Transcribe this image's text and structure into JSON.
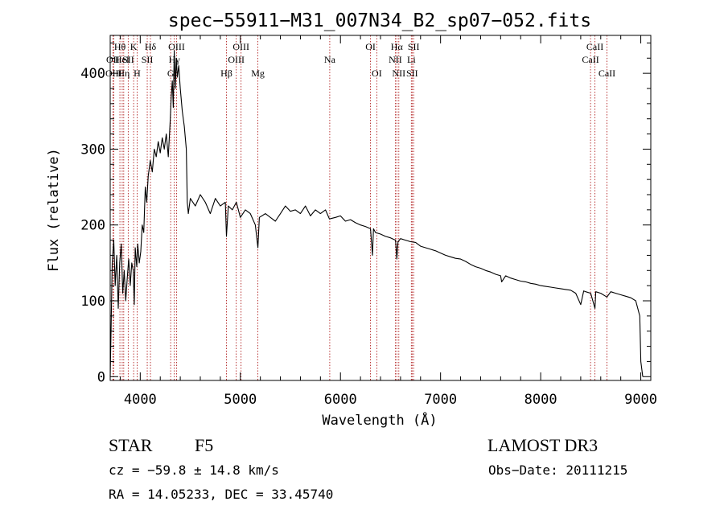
{
  "chart_data": {
    "type": "line",
    "title": "spec−55911−M31_007N34_B2_sp07−052.fits",
    "xlabel": "Wavelength (Å)",
    "ylabel": "Flux (relative)",
    "xlim": [
      3700,
      9100
    ],
    "ylim": [
      -5,
      450
    ],
    "xticks": [
      4000,
      5000,
      6000,
      7000,
      8000,
      9000
    ],
    "xtick_labels": [
      "4000",
      "5000",
      "6000",
      "7000",
      "8000",
      "9000"
    ],
    "yticks": [
      0,
      100,
      200,
      300,
      400
    ],
    "ytick_labels": [
      "0",
      "100",
      "200",
      "300",
      "400"
    ],
    "line_color": "#000000",
    "marker_color": "#b22222",
    "series": [
      {
        "name": "flux",
        "x": [
          3700,
          3710,
          3720,
          3735,
          3750,
          3765,
          3780,
          3795,
          3810,
          3825,
          3840,
          3855,
          3870,
          3885,
          3900,
          3915,
          3930,
          3940,
          3950,
          3965,
          3975,
          3990,
          4005,
          4020,
          4035,
          4050,
          4065,
          4080,
          4100,
          4120,
          4140,
          4160,
          4180,
          4200,
          4220,
          4240,
          4260,
          4280,
          4300,
          4310,
          4320,
          4330,
          4340,
          4350,
          4360,
          4370,
          4385,
          4400,
          4420,
          4440,
          4460,
          4470,
          4480,
          4500,
          4550,
          4600,
          4650,
          4700,
          4750,
          4800,
          4850,
          4861,
          4880,
          4920,
          4960,
          5000,
          5050,
          5100,
          5150,
          5175,
          5190,
          5250,
          5300,
          5350,
          5400,
          5450,
          5500,
          5550,
          5600,
          5650,
          5700,
          5750,
          5800,
          5850,
          5890,
          5950,
          6000,
          6050,
          6100,
          6150,
          6200,
          6250,
          6300,
          6320,
          6330,
          6350,
          6400,
          6450,
          6500,
          6550,
          6563,
          6575,
          6600,
          6650,
          6700,
          6750,
          6800,
          6850,
          6900,
          6950,
          7000,
          7050,
          7100,
          7150,
          7200,
          7250,
          7300,
          7350,
          7400,
          7450,
          7500,
          7550,
          7600,
          7610,
          7650,
          7700,
          7750,
          7800,
          7850,
          7900,
          7950,
          8000,
          8050,
          8100,
          8150,
          8200,
          8250,
          8300,
          8350,
          8400,
          8430,
          8450,
          8500,
          8542,
          8550,
          8600,
          8662,
          8700,
          8750,
          8800,
          8850,
          8900,
          8950,
          8990,
          9000,
          9020
        ],
        "y": [
          0,
          70,
          150,
          180,
          120,
          160,
          90,
          150,
          175,
          110,
          140,
          100,
          130,
          155,
          120,
          150,
          140,
          95,
          170,
          145,
          175,
          150,
          165,
          200,
          190,
          250,
          230,
          265,
          285,
          270,
          300,
          290,
          310,
          295,
          315,
          300,
          320,
          290,
          340,
          370,
          390,
          355,
          430,
          380,
          420,
          395,
          410,
          380,
          350,
          330,
          300,
          230,
          215,
          235,
          225,
          240,
          230,
          215,
          235,
          225,
          230,
          185,
          225,
          220,
          230,
          210,
          220,
          215,
          200,
          170,
          210,
          215,
          210,
          205,
          215,
          225,
          218,
          220,
          215,
          225,
          212,
          220,
          215,
          220,
          208,
          210,
          212,
          205,
          207,
          203,
          200,
          198,
          195,
          160,
          195,
          190,
          188,
          185,
          183,
          180,
          155,
          178,
          182,
          180,
          178,
          177,
          172,
          170,
          168,
          166,
          163,
          160,
          158,
          156,
          155,
          152,
          148,
          145,
          143,
          140,
          138,
          135,
          133,
          125,
          133,
          130,
          128,
          126,
          125,
          123,
          122,
          120,
          119,
          118,
          117,
          116,
          115,
          114,
          110,
          95,
          113,
          112,
          110,
          90,
          112,
          110,
          105,
          112,
          110,
          108,
          106,
          104,
          100,
          80,
          20,
          0
        ]
      }
    ],
    "line_markers": [
      {
        "label": "Hθ",
        "x": 3797,
        "row": 1
      },
      {
        "label": "OII",
        "x": 3727,
        "row": 2
      },
      {
        "label": "OIII",
        "x": 3735,
        "row": 3
      },
      {
        "label": "HeI",
        "x": 3820,
        "row": 2
      },
      {
        "label": "Hη",
        "x": 3835,
        "row": 3
      },
      {
        "label": "K",
        "x": 3934,
        "row": 1
      },
      {
        "label": "SII",
        "x": 3880,
        "row": 2
      },
      {
        "label": "H",
        "x": 3969,
        "row": 3
      },
      {
        "label": "Hδ",
        "x": 4102,
        "row": 1
      },
      {
        "label": "SII",
        "x": 4070,
        "row": 2
      },
      {
        "label": "OIII",
        "x": 4363,
        "row": 1
      },
      {
        "label": "Hγ",
        "x": 4340,
        "row": 2
      },
      {
        "label": "G",
        "x": 4304,
        "row": 3
      },
      {
        "label": "Hβ",
        "x": 4861,
        "row": 3
      },
      {
        "label": "OIII",
        "x": 5007,
        "row": 1
      },
      {
        "label": "OIII",
        "x": 4959,
        "row": 2
      },
      {
        "label": "Mg",
        "x": 5175,
        "row": 3
      },
      {
        "label": "Na",
        "x": 5893,
        "row": 2
      },
      {
        "label": "OI",
        "x": 6300,
        "row": 1
      },
      {
        "label": "OI",
        "x": 6363,
        "row": 3
      },
      {
        "label": "Hα",
        "x": 6563,
        "row": 1
      },
      {
        "label": "NII",
        "x": 6548,
        "row": 2
      },
      {
        "label": "NII",
        "x": 6583,
        "row": 3
      },
      {
        "label": "SII",
        "x": 6731,
        "row": 1
      },
      {
        "label": "Li",
        "x": 6708,
        "row": 2
      },
      {
        "label": "SII",
        "x": 6716,
        "row": 3
      },
      {
        "label": "CaII",
        "x": 8542,
        "row": 1
      },
      {
        "label": "CaII",
        "x": 8498,
        "row": 2
      },
      {
        "label": "CaII",
        "x": 8662,
        "row": 3
      }
    ]
  },
  "info": {
    "object_class": "STAR",
    "subclass": "F5",
    "survey": "LAMOST DR3",
    "redshift_text": "cz = −59.8 ± 14.8 km/s",
    "obs_date": "Obs−Date: 20111215",
    "coords": "RA =  14.05233, DEC =  33.45740"
  }
}
